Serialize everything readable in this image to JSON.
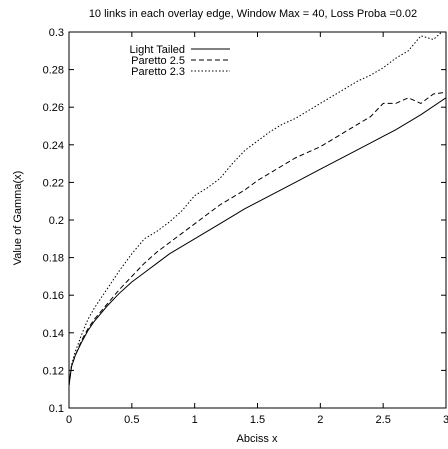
{
  "chart_data": {
    "type": "line",
    "title": "10 links in each overlay edge, Window Max = 40, Loss Proba =0.02",
    "xlabel": "Abciss x",
    "ylabel": "Value of Gamma(x)",
    "xlim": [
      0,
      3
    ],
    "ylim": [
      0.1,
      0.3
    ],
    "xticks": [
      0,
      0.5,
      1,
      1.5,
      2,
      2.5,
      3
    ],
    "xtick_labels": [
      "0",
      "0.5",
      "1",
      "1.5",
      "2",
      "2.5",
      "3"
    ],
    "yticks": [
      0.1,
      0.12,
      0.14,
      0.16,
      0.18,
      0.2,
      0.22,
      0.24,
      0.26,
      0.28,
      0.3
    ],
    "ytick_labels": [
      "0.1",
      "0.12",
      "0.14",
      "0.16",
      "0.18",
      "0.2",
      "0.22",
      "0.24",
      "0.26",
      "0.28",
      "0.3"
    ],
    "grid": false,
    "legend_position": "top-left",
    "series": [
      {
        "name": "Light Tailed",
        "style": "solid",
        "color": "#000000",
        "x": [
          0,
          0.02,
          0.05,
          0.1,
          0.15,
          0.2,
          0.3,
          0.4,
          0.5,
          0.6,
          0.7,
          0.8,
          0.9,
          1.0,
          1.2,
          1.4,
          1.6,
          1.8,
          2.0,
          2.2,
          2.4,
          2.6,
          2.8,
          3.0
        ],
        "y": [
          0.112,
          0.122,
          0.128,
          0.135,
          0.141,
          0.146,
          0.154,
          0.161,
          0.167,
          0.172,
          0.177,
          0.182,
          0.186,
          0.19,
          0.198,
          0.206,
          0.213,
          0.22,
          0.227,
          0.234,
          0.241,
          0.248,
          0.256,
          0.265
        ]
      },
      {
        "name": "Paretto 2.5",
        "style": "dashed",
        "color": "#000000",
        "x": [
          0,
          0.02,
          0.05,
          0.1,
          0.15,
          0.2,
          0.3,
          0.4,
          0.5,
          0.6,
          0.7,
          0.8,
          0.9,
          1.0,
          1.1,
          1.2,
          1.3,
          1.4,
          1.5,
          1.6,
          1.7,
          1.8,
          1.9,
          2.0,
          2.1,
          2.2,
          2.3,
          2.4,
          2.5,
          2.6,
          2.7,
          2.8,
          2.9,
          3.0
        ],
        "y": [
          0.112,
          0.122,
          0.128,
          0.136,
          0.142,
          0.147,
          0.155,
          0.163,
          0.17,
          0.177,
          0.183,
          0.188,
          0.193,
          0.198,
          0.203,
          0.208,
          0.212,
          0.216,
          0.221,
          0.225,
          0.229,
          0.233,
          0.236,
          0.239,
          0.243,
          0.247,
          0.251,
          0.255,
          0.262,
          0.262,
          0.265,
          0.262,
          0.267,
          0.268
        ]
      },
      {
        "name": "Paretto 2.3",
        "style": "dotted",
        "color": "#000000",
        "x": [
          0,
          0.02,
          0.05,
          0.1,
          0.15,
          0.2,
          0.3,
          0.4,
          0.5,
          0.6,
          0.7,
          0.8,
          0.9,
          1.0,
          1.1,
          1.2,
          1.3,
          1.4,
          1.5,
          1.6,
          1.7,
          1.8,
          1.9,
          2.0,
          2.1,
          2.2,
          2.3,
          2.4,
          2.5,
          2.6,
          2.7,
          2.8,
          2.9,
          3.0
        ],
        "y": [
          0.112,
          0.123,
          0.13,
          0.139,
          0.147,
          0.153,
          0.163,
          0.173,
          0.182,
          0.19,
          0.194,
          0.199,
          0.205,
          0.213,
          0.217,
          0.222,
          0.23,
          0.237,
          0.242,
          0.247,
          0.251,
          0.254,
          0.258,
          0.262,
          0.266,
          0.27,
          0.274,
          0.277,
          0.281,
          0.286,
          0.29,
          0.298,
          0.296,
          0.302
        ]
      }
    ]
  }
}
